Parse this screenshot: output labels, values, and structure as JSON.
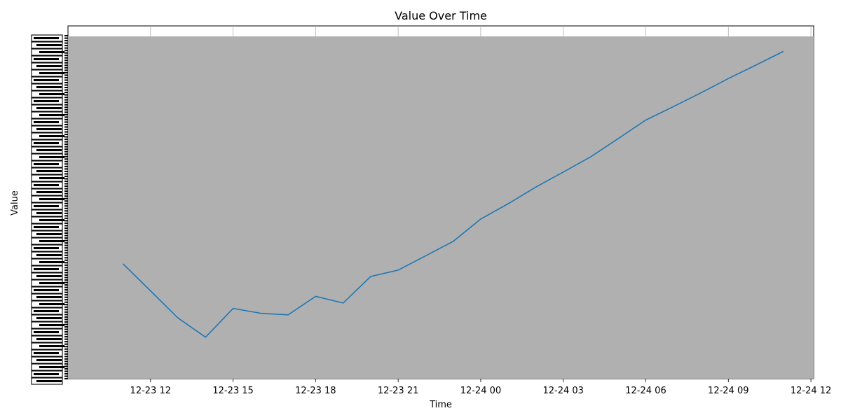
{
  "chart_data": {
    "type": "line",
    "title": "Value Over Time",
    "xlabel": "Time",
    "ylabel": "Value",
    "background_color": "#b0b0b0",
    "line_color": "#1f77b4",
    "grid": "vertical-only",
    "legend": "none",
    "xlim": [
      "2023-12-23 09:00",
      "2023-12-24 12:06"
    ],
    "x_tick_labels": [
      "12-23 12",
      "12-23 15",
      "12-23 18",
      "12-23 21",
      "12-24 00",
      "12-24 03",
      "12-24 06",
      "12-24 09",
      "12-24 12"
    ],
    "x_ticks": [
      "2023-12-23 12:00",
      "2023-12-23 15:00",
      "2023-12-23 18:00",
      "2023-12-23 21:00",
      "2023-12-24 00:00",
      "2023-12-24 03:00",
      "2023-12-24 06:00",
      "2023-12-24 09:00",
      "2023-12-24 12:00"
    ],
    "x": [
      "2023-12-23 11:00",
      "2023-12-23 12:00",
      "2023-12-23 13:00",
      "2023-12-23 14:00",
      "2023-12-23 15:00",
      "2023-12-23 16:00",
      "2023-12-23 17:00",
      "2023-12-23 18:00",
      "2023-12-23 19:00",
      "2023-12-23 20:00",
      "2023-12-23 21:00",
      "2023-12-23 22:00",
      "2023-12-23 23:00",
      "2023-12-24 00:00",
      "2023-12-24 01:00",
      "2023-12-24 02:00",
      "2023-12-24 03:00",
      "2023-12-24 04:00",
      "2023-12-24 05:00",
      "2023-12-24 06:00",
      "2023-12-24 07:00",
      "2023-12-24 08:00",
      "2023-12-24 09:00",
      "2023-12-24 10:00",
      "2023-12-24 11:00"
    ],
    "values": [
      0.36,
      0.275,
      0.19,
      0.13,
      0.22,
      0.205,
      0.2,
      0.258,
      0.237,
      0.32,
      0.34,
      0.385,
      0.43,
      0.5,
      0.548,
      0.6,
      0.647,
      0.695,
      0.752,
      0.81,
      0.852,
      0.895,
      0.94,
      0.982,
      1.025
    ],
    "ylim": [
      0,
      1.05
    ],
    "y_tick_note": "overlapping illegible tick labels"
  }
}
